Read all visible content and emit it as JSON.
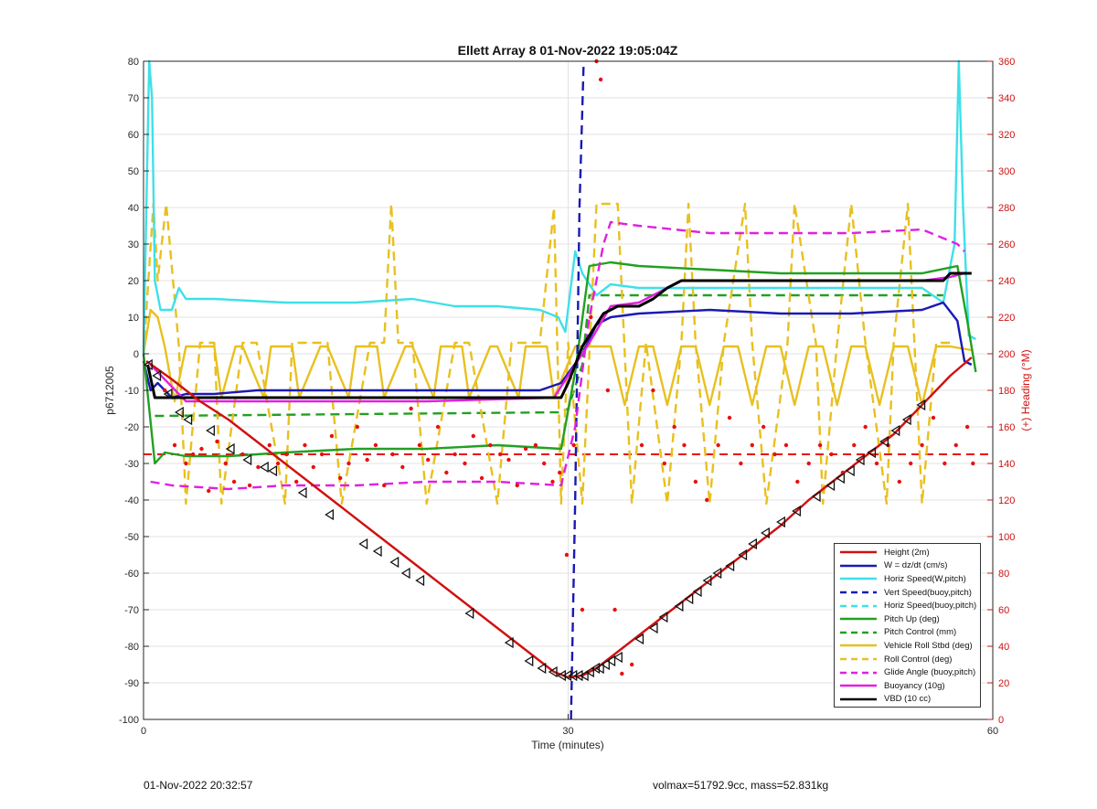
{
  "title": "Ellett Array 8 01-Nov-2022 19:05:04Z",
  "footer": {
    "left": "01-Nov-2022 20:32:57",
    "right": "volmax=51792.9cc, mass=52.831kg"
  },
  "colors": {
    "height": "#d01010",
    "w": "#1a1ab4",
    "horiz_w": "#3fe0e8",
    "vert_buoy": "#1a1ab4",
    "horiz_buoy": "#3fe0e8",
    "pitch": "#22a022",
    "pitch_ctrl": "#22a022",
    "roll": "#e8c020",
    "roll_ctrl": "#e8c020",
    "glide": "#e020e0",
    "buoy": "#e020e0",
    "vbd": "#000000",
    "heading": "#e81010",
    "right_axis": "#d01010"
  },
  "chart_data": {
    "type": "line",
    "title": "Ellett Array 8 01-Nov-2022 19:05:04Z",
    "xlabel": "Time (minutes)",
    "ylabel": "p6712005",
    "y2label": "(+) Heading (°M)",
    "xlim": [
      0,
      60
    ],
    "ylim": [
      -100,
      80
    ],
    "y2lim": [
      0,
      360
    ],
    "xticks": [
      0,
      30,
      60
    ],
    "yticks": [
      -100,
      -90,
      -80,
      -70,
      -60,
      -50,
      -40,
      -30,
      -20,
      -10,
      0,
      10,
      20,
      30,
      40,
      50,
      60,
      70,
      80
    ],
    "y2ticks": [
      0,
      20,
      40,
      60,
      80,
      100,
      120,
      140,
      160,
      180,
      200,
      220,
      240,
      260,
      280,
      300,
      320,
      340,
      360
    ],
    "grid": true,
    "legend_position": "bottom-right",
    "legend": [
      "Height (2m)",
      "W = dz/dt (cm/s)",
      "Horiz Speed(W,pitch)",
      "Vert Speed(buoy,pitch)",
      "Horiz Speed(buoy,pitch)",
      "Pitch Up (deg)",
      "Pitch Control (mm)",
      "Vehicle Roll Stbd (deg)",
      "Roll Control (deg)",
      "Glide Angle (buoy,pitch)",
      "Buoyancy (10g)",
      "VBD (10 cc)"
    ],
    "series": [
      {
        "name": "Height (2m)",
        "style": "solid",
        "color": "#d01010",
        "x": [
          0.2,
          2,
          4,
          6,
          8,
          10,
          12,
          14,
          16,
          18,
          20,
          22,
          24,
          26,
          28,
          29,
          30,
          31,
          32,
          33,
          35,
          37,
          39,
          41,
          43,
          45,
          47,
          49,
          51,
          53,
          55,
          57,
          58.5
        ],
        "y": [
          -2,
          -7,
          -13,
          -18,
          -24,
          -30,
          -36,
          -42,
          -48,
          -54,
          -60,
          -66,
          -72,
          -78,
          -84,
          -87,
          -88.5,
          -88,
          -86,
          -83,
          -77,
          -71,
          -65,
          -59,
          -53,
          -47,
          -40,
          -34,
          -28,
          -22,
          -14,
          -6,
          -1
        ]
      },
      {
        "name": "W = dz/dt (cm/s)",
        "style": "solid",
        "color": "#1a1ab4",
        "x": [
          0,
          0.5,
          1,
          2,
          3,
          5,
          8,
          12,
          16,
          20,
          24,
          28,
          29.5,
          31,
          32,
          33,
          35,
          40,
          45,
          50,
          55,
          56.5,
          57.5,
          58,
          58.5
        ],
        "y": [
          -2,
          -10,
          -8,
          -12,
          -11,
          -11,
          -10,
          -10,
          -10,
          -10,
          -10,
          -10,
          -8,
          0,
          8,
          10,
          11,
          12,
          11,
          11,
          12,
          14,
          9,
          -2,
          -3
        ]
      },
      {
        "name": "Horiz Speed(W,pitch)",
        "style": "solid",
        "color": "#3fe0e8",
        "x": [
          0,
          0.4,
          0.6,
          0.8,
          1.2,
          2,
          2.5,
          3,
          5,
          10,
          15,
          19,
          22,
          25,
          28,
          29.3,
          29.8,
          30.5,
          31,
          32,
          33,
          35,
          40,
          45,
          50,
          55,
          56.5,
          57.3,
          57.6,
          57.9,
          58.3,
          58.8
        ],
        "y": [
          0,
          80,
          70,
          20,
          12,
          12,
          18,
          15,
          15,
          14,
          14,
          15,
          13,
          13,
          12,
          10,
          6,
          28,
          22,
          16,
          19,
          18,
          18,
          18,
          18,
          18,
          14,
          30,
          80,
          40,
          5,
          4
        ]
      },
      {
        "name": "Vert Speed(buoy,pitch)",
        "style": "dashed",
        "color": "#1a1ab4",
        "x": [
          30.2,
          30.5,
          30.8,
          31.1
        ],
        "y": [
          -100,
          -40,
          40,
          80
        ]
      },
      {
        "name": "Horiz Speed(buoy,pitch)",
        "style": "dashed",
        "color": "#3fe0e8",
        "x": [],
        "y": []
      },
      {
        "name": "Pitch Up (deg)",
        "style": "solid",
        "color": "#22a022",
        "x": [
          0,
          0.8,
          1.5,
          3,
          6,
          10,
          15,
          20,
          25,
          29.5,
          30.5,
          31.5,
          33,
          35,
          40,
          45,
          50,
          55,
          57.5,
          58.2,
          58.8
        ],
        "y": [
          0,
          -30,
          -27,
          -28,
          -28,
          -27,
          -26,
          -26,
          -25,
          -26,
          -5,
          24,
          25,
          24,
          23,
          22,
          22,
          22,
          24,
          9,
          -5
        ]
      },
      {
        "name": "Pitch Control (mm)",
        "style": "dashed",
        "color": "#22a022",
        "x": [
          0.8,
          29.5,
          30,
          31,
          31.5,
          56.5
        ],
        "y": [
          -17,
          -16,
          -15,
          -3,
          16,
          16
        ]
      },
      {
        "name": "Vehicle Roll Stbd (deg)",
        "style": "solid",
        "color": "#e8c020",
        "x": [
          0,
          0.5,
          1,
          1.5,
          2.2,
          3,
          3.5,
          5,
          5.5,
          6.5,
          7,
          8.5,
          9,
          10.5,
          11,
          12.5,
          13,
          14.5,
          15,
          16.5,
          17,
          18.5,
          19,
          20.5,
          21,
          22.5,
          23,
          24.5,
          25,
          26.5,
          27,
          28.5,
          29,
          30.5,
          31.5,
          33,
          34,
          35,
          36,
          37,
          38,
          39,
          40,
          41,
          42,
          43,
          44,
          45,
          46,
          47,
          48,
          49,
          50,
          51,
          52,
          53,
          54,
          55,
          56,
          57,
          58.5
        ],
        "y": [
          0,
          12,
          10,
          2,
          -13,
          2,
          2,
          2,
          -12,
          2,
          2,
          -12,
          2,
          2,
          -12,
          2,
          2,
          -12,
          2,
          2,
          -12,
          2,
          2,
          -12,
          2,
          2,
          -12,
          2,
          2,
          -12,
          2,
          2,
          -12,
          2,
          2,
          2,
          -14,
          2,
          2,
          -14,
          2,
          2,
          -14,
          2,
          2,
          -14,
          2,
          2,
          -14,
          2,
          2,
          -14,
          2,
          2,
          -14,
          2,
          2,
          -14,
          2,
          2,
          1
        ]
      },
      {
        "name": "Roll Control (deg)",
        "style": "dashed",
        "color": "#e8c020",
        "x": [
          0,
          0.7,
          1,
          1.6,
          2.5,
          3,
          4,
          5,
          5.5,
          7,
          8,
          10,
          10.5,
          13,
          14,
          16,
          17,
          17.5,
          18,
          19,
          20,
          22,
          23,
          25,
          26,
          28,
          29,
          29.5,
          30,
          31,
          32,
          32.5,
          33.5,
          34.5,
          35.5,
          37,
          38,
          38.5,
          39,
          40,
          41,
          42.5,
          43,
          44,
          45.5,
          46,
          47.5,
          48,
          49,
          50,
          51,
          52.5,
          53,
          54,
          55,
          56,
          57
        ],
        "y": [
          0,
          41,
          20,
          41,
          2,
          -41,
          3,
          3,
          -41,
          3,
          3,
          -41,
          3,
          3,
          -41,
          3,
          3,
          41,
          3,
          3,
          -41,
          3,
          3,
          -41,
          3,
          3,
          40,
          -41,
          3,
          -41,
          41,
          41,
          41,
          -41,
          3,
          -41,
          3,
          41,
          3,
          -41,
          3,
          41,
          3,
          -41,
          3,
          41,
          3,
          -41,
          3,
          41,
          3,
          -41,
          3,
          41,
          -41,
          3,
          3
        ]
      },
      {
        "name": "Glide Angle (buoy,pitch)",
        "style": "dashed",
        "color": "#e020e0",
        "x": [
          0.5,
          2,
          6,
          10,
          15,
          20,
          25,
          29.5,
          30.5,
          31.5,
          32.5,
          33,
          35,
          40,
          45,
          50,
          55,
          57.5,
          58
        ],
        "y": [
          -35,
          -36,
          -37,
          -36,
          -36,
          -35,
          -35,
          -36,
          -20,
          10,
          30,
          36,
          35,
          33,
          33,
          33,
          34,
          30,
          28
        ]
      },
      {
        "name": "Buoyancy (10g)",
        "style": "solid",
        "color": "#e020e0",
        "x": [
          0.5,
          3,
          10,
          20,
          29,
          31.5,
          33,
          35,
          37,
          38,
          42,
          46,
          50,
          55,
          57,
          58
        ],
        "y": [
          -3,
          -13,
          -13,
          -13,
          -12,
          3,
          13,
          14,
          18,
          20,
          20,
          20,
          20,
          20,
          21,
          22
        ]
      },
      {
        "name": "VBD (10 cc)",
        "style": "solid",
        "color": "#000000",
        "x": [
          0.3,
          0.8,
          5,
          10,
          20,
          28,
          29.5,
          30,
          31,
          32.5,
          33.5,
          35,
          36,
          37,
          38,
          42,
          46,
          50,
          55,
          56.5,
          57,
          58.5
        ],
        "y": [
          -3,
          -12,
          -12,
          -12,
          -12,
          -12,
          -12,
          -8,
          2,
          11,
          13,
          13,
          15,
          18,
          20,
          20,
          20,
          20,
          20,
          20,
          22,
          22
        ]
      }
    ],
    "heading_reference": {
      "name": "Heading reference",
      "style": "dashed",
      "color": "#e81010",
      "y2": 145
    },
    "heading_scatter": {
      "name": "(+) Heading (°M)",
      "color": "#e81010",
      "axis": "right",
      "x": [
        1.5,
        2.2,
        3.0,
        3.5,
        4.1,
        4.6,
        5.2,
        5.8,
        6.4,
        7.0,
        7.5,
        8.1,
        8.9,
        9.5,
        10.1,
        10.8,
        11.4,
        12.0,
        12.6,
        13.3,
        13.9,
        14.5,
        15.1,
        15.8,
        16.4,
        17.0,
        17.6,
        18.3,
        18.9,
        19.5,
        20.1,
        20.8,
        21.4,
        22.0,
        22.7,
        23.3,
        23.9,
        24.5,
        25.2,
        25.8,
        26.4,
        27.0,
        27.7,
        28.3,
        28.9,
        29.4,
        29.9,
        30.4,
        31.0,
        31.6,
        32.0,
        32.3,
        32.8,
        33.3,
        33.8,
        34.5,
        35.2,
        36.0,
        36.8,
        37.5,
        38.2,
        39.0,
        39.8,
        40.6,
        41.4,
        42.2,
        43.0,
        43.8,
        44.6,
        45.4,
        46.2,
        47.0,
        47.8,
        48.6,
        49.4,
        50.2,
        51.0,
        51.8,
        52.6,
        53.4,
        54.2,
        55.0,
        55.8,
        56.6,
        57.4,
        58.2,
        58.6
      ],
      "y": [
        180,
        150,
        140,
        145,
        148,
        125,
        152,
        140,
        130,
        145,
        128,
        138,
        150,
        140,
        145,
        130,
        150,
        138,
        145,
        155,
        132,
        140,
        160,
        142,
        150,
        128,
        145,
        138,
        170,
        150,
        142,
        160,
        135,
        145,
        140,
        155,
        132,
        150,
        145,
        142,
        128,
        148,
        150,
        140,
        130,
        135,
        90,
        150,
        60,
        220,
        360,
        350,
        180,
        60,
        25,
        30,
        150,
        180,
        140,
        160,
        150,
        130,
        120,
        150,
        165,
        140,
        150,
        160,
        145,
        150,
        130,
        140,
        150,
        145,
        135,
        150,
        160,
        140,
        150,
        130,
        140,
        150,
        165,
        140,
        150,
        160,
        140
      ]
    },
    "height_markers": {
      "name": "Height markers",
      "color": "#000000",
      "x": [
        0.4,
        1.0,
        1.8,
        2.6,
        3.2,
        4.8,
        6.2,
        7.4,
        8.6,
        9.2,
        11.3,
        13.2,
        15.6,
        16.6,
        17.8,
        18.6,
        19.6,
        23.1,
        25.9,
        27.3,
        28.2,
        29.0,
        29.6,
        30.0,
        30.4,
        30.8,
        31.2,
        31.6,
        32.0,
        32.3,
        32.7,
        33.1,
        33.6,
        35.1,
        36.1,
        36.8,
        37.9,
        38.6,
        39.2,
        39.9,
        40.6,
        41.5,
        42.4,
        43.1,
        44.0,
        45.1,
        46.2,
        47.6,
        48.6,
        49.3,
        50.0,
        50.7,
        51.5,
        52.4,
        53.2,
        54.0,
        55.0
      ],
      "y": [
        -3,
        -6,
        -11,
        -16,
        -18,
        -21,
        -26,
        -29,
        -31,
        -32,
        -38,
        -44,
        -52,
        -54,
        -57,
        -60,
        -62,
        -71,
        -79,
        -84,
        -86,
        -87,
        -88,
        -88,
        -88,
        -88,
        -88,
        -87,
        -86,
        -86,
        -85,
        -84,
        -83,
        -78,
        -75,
        -72,
        -69,
        -67,
        -65,
        -62,
        -60,
        -58,
        -55,
        -52,
        -49,
        -46,
        -43,
        -39,
        -36,
        -34,
        -32,
        -29,
        -27,
        -24,
        -21,
        -18,
        -14
      ]
    }
  }
}
